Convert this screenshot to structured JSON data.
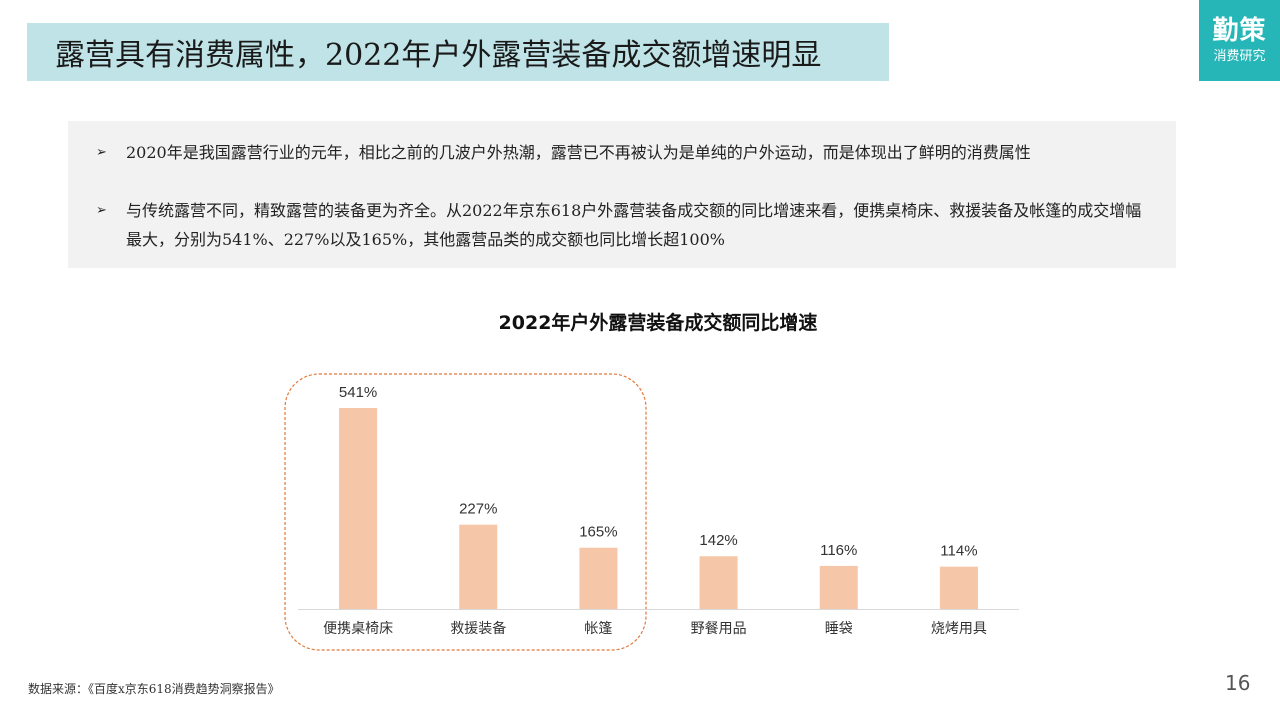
{
  "slide": {
    "title": "露营具有消费属性，2022年户外露营装备成交额增速明显",
    "logo_main": "勤策",
    "logo_sub": "消费研究",
    "bullets": [
      "2020年是我国露营行业的元年，相比之前的几波户外热潮，露营已不再被认为是单纯的户外运动，而是体现出了鲜明的消费属性",
      "与传统露营不同，精致露营的装备更为齐全。从2022年京东618户外露营装备成交额的同比增速来看，便携桌椅床、救援装备及帐篷的成交增幅最大，分别为541%、227%以及165%，其他露营品类的成交额也同比增长超100%"
    ],
    "bullet_marker": "➢",
    "source": "数据来源：《百度x京东618消费趋势洞察报告》",
    "page_number": "16"
  },
  "colors": {
    "title_band": "#bfe3e6",
    "logo_bg": "#26b6b7",
    "bar": "#f6c6a8",
    "highlight_border": "#e0783a"
  },
  "chart_data": {
    "type": "bar",
    "title": "2022年户外露营装备成交额同比增速",
    "categories": [
      "便携桌椅床",
      "救援装备",
      "帐篷",
      "野餐用品",
      "睡袋",
      "烧烤用具"
    ],
    "values": [
      541,
      227,
      165,
      142,
      116,
      114
    ],
    "data_labels": [
      "541%",
      "227%",
      "165%",
      "142%",
      "116%",
      "114%"
    ],
    "unit": "%",
    "ylim": [
      0,
      541
    ],
    "grid": false,
    "legend": "none",
    "highlighted_categories": [
      "便携桌椅床",
      "救援装备",
      "帐篷"
    ]
  }
}
